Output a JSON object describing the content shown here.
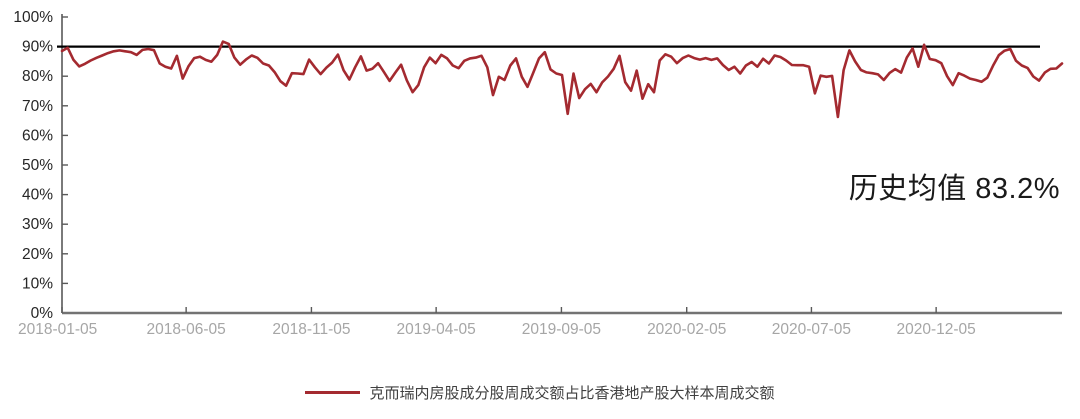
{
  "chart_data": {
    "type": "line",
    "title": "",
    "xlabel": "",
    "ylabel": "",
    "ylim": [
      0,
      100
    ],
    "grid": false,
    "legend_position": "bottom",
    "y_tick_labels": [
      "0%",
      "10%",
      "20%",
      "30%",
      "40%",
      "50%",
      "60%",
      "70%",
      "80%",
      "90%",
      "100%"
    ],
    "y_tick_values": [
      0,
      10,
      20,
      30,
      40,
      50,
      60,
      70,
      80,
      90,
      100
    ],
    "x_start": "2018-01-05",
    "x_interval": "weekly",
    "x_tick_labels": [
      "2018-01-05",
      "2018-06-05",
      "2018-11-05",
      "2019-04-05",
      "2019-09-05",
      "2020-02-05",
      "2020-07-05",
      "2020-12-05"
    ],
    "x_tick_positions_weeks": [
      0,
      21.6,
      43.4,
      65.1,
      86.9,
      108.7,
      130.4,
      152.1
    ],
    "series": [
      {
        "name": "克而瑞内房股成分股周成交额占比香港地产股大样本周成交额",
        "color": "#a42a30",
        "unit": "%",
        "values": [
          88.5,
          89.6,
          85.5,
          83.3,
          84.2,
          85.3,
          86.2,
          87.0,
          87.8,
          88.4,
          88.7,
          88.4,
          88.1,
          87.2,
          88.9,
          89.2,
          88.8,
          84.3,
          83.2,
          82.6,
          86.9,
          79.2,
          83.3,
          86.1,
          86.6,
          85.5,
          84.9,
          87.2,
          91.7,
          90.9,
          86.3,
          83.9,
          85.6,
          87.0,
          86.2,
          84.3,
          83.6,
          81.4,
          78.3,
          76.8,
          81.0,
          80.9,
          80.7,
          85.6,
          83.0,
          80.7,
          82.9,
          84.6,
          87.3,
          82.0,
          78.9,
          83.0,
          86.7,
          81.9,
          82.5,
          84.4,
          81.5,
          78.4,
          81.2,
          83.9,
          78.6,
          74.6,
          77.0,
          83.0,
          86.3,
          84.4,
          87.2,
          86.0,
          83.6,
          82.7,
          85.2,
          86.0,
          86.3,
          86.9,
          83.0,
          73.6,
          79.8,
          78.7,
          83.6,
          86.0,
          79.8,
          76.4,
          81.2,
          86.0,
          88.1,
          82.3,
          80.9,
          80.4,
          67.3,
          80.9,
          72.6,
          75.6,
          77.4,
          74.6,
          77.9,
          79.9,
          82.5,
          86.9,
          78.0,
          75.1,
          81.9,
          72.4,
          77.3,
          74.6,
          85.3,
          87.4,
          86.6,
          84.4,
          86.1,
          87.0,
          86.1,
          85.6,
          86.1,
          85.5,
          86.0,
          83.8,
          82.1,
          83.2,
          80.9,
          83.6,
          84.8,
          83.2,
          85.9,
          84.3,
          87.0,
          86.5,
          85.3,
          83.8,
          83.7,
          83.7,
          83.2,
          74.2,
          80.2,
          79.8,
          80.1,
          66.2,
          82.0,
          88.7,
          85.0,
          82.1,
          81.3,
          81.0,
          80.6,
          78.7,
          81.1,
          82.4,
          81.2,
          86.3,
          89.4,
          83.2,
          90.6,
          85.8,
          85.4,
          84.4,
          80.0,
          77.0,
          81.0,
          80.2,
          79.2,
          78.7,
          78.1,
          79.5,
          83.5,
          87.1,
          88.6,
          89.2,
          85.2,
          83.6,
          82.8,
          79.9,
          78.5,
          81.2,
          82.5,
          82.6,
          84.3
        ]
      }
    ],
    "reference_line": {
      "value": 90,
      "color": "#000000"
    },
    "annotation": {
      "text": "历史均值 83.2%",
      "mean_value": 83.2
    }
  },
  "annotation": {
    "text": "历史均值 83.2%"
  },
  "legend": {
    "label": "克而瑞内房股成分股周成交额占比香港地产股大样本周成交额"
  },
  "colors": {
    "series": "#a42a30",
    "reference_line": "#000000",
    "y_axis": "#595959",
    "x_axis": "#737373",
    "tick": "#595959",
    "y_tick_label": "#262626",
    "x_tick_label": "#a6a6a6",
    "annotation_text": "#1a1a1a",
    "legend_text": "#404040",
    "background": "#ffffff"
  }
}
